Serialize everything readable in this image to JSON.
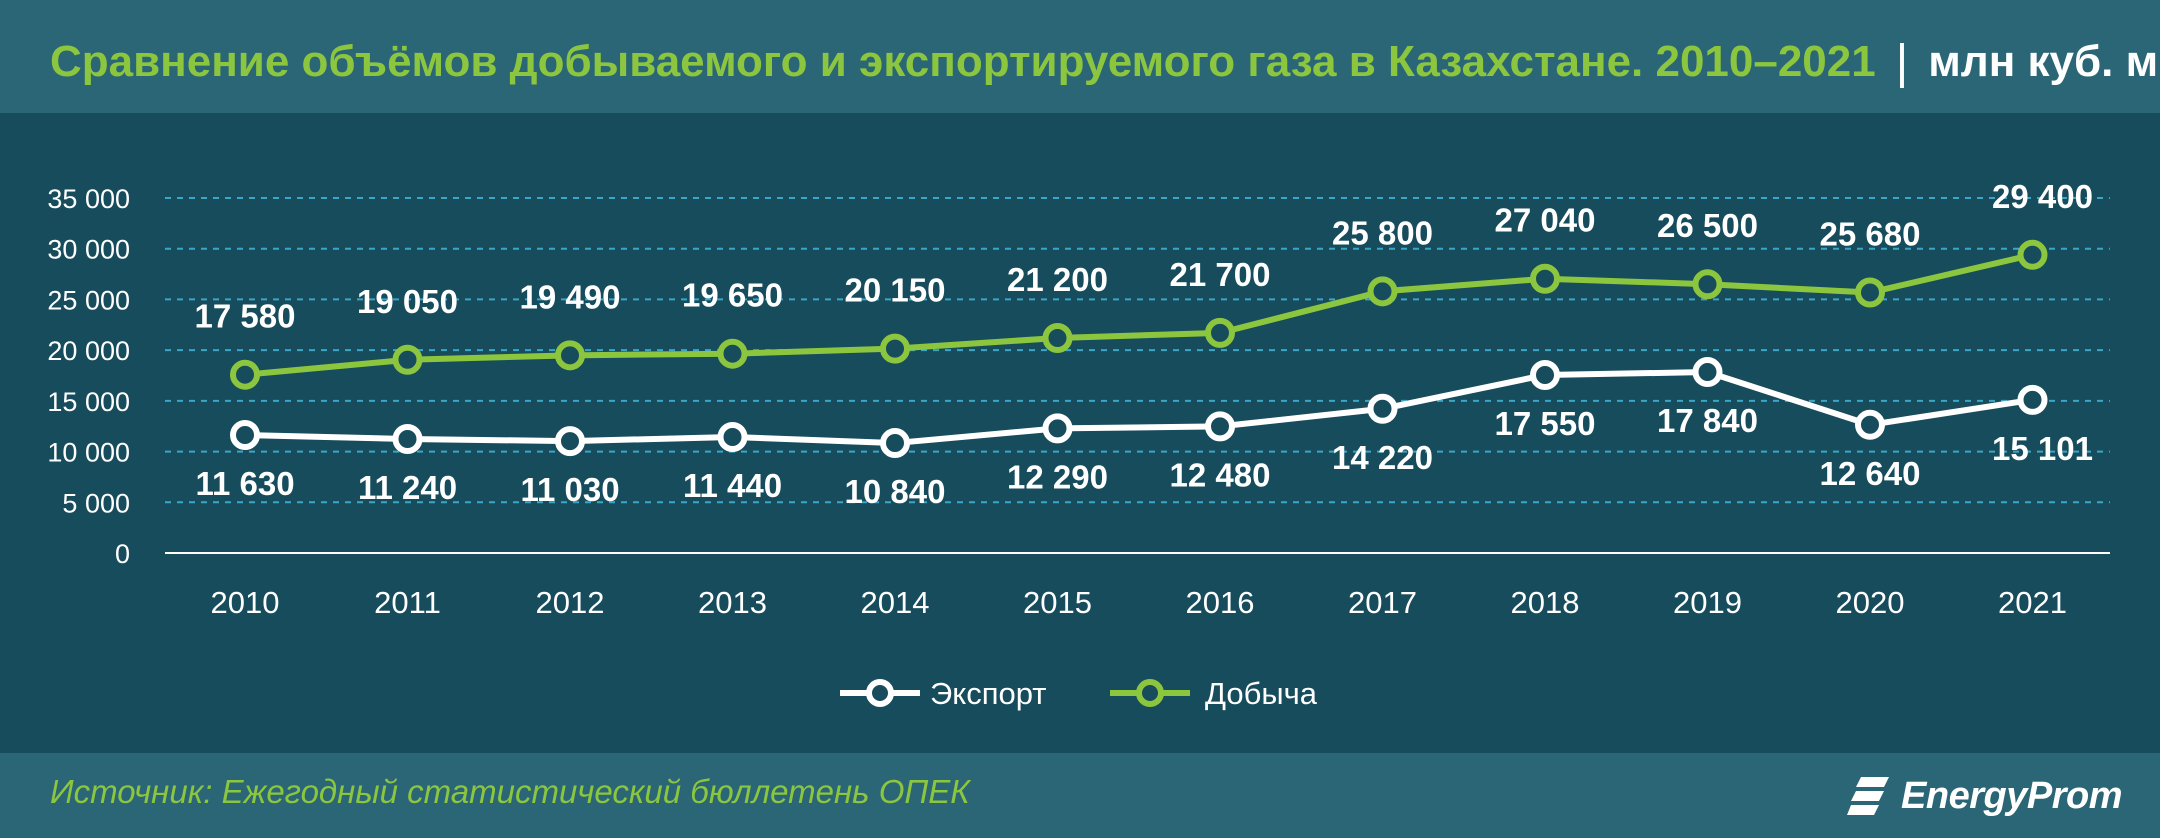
{
  "header": {
    "title": "Сравнение объёмов добываемого и экспортируемого газа в Казахстане. 2010–2021",
    "separator": "|",
    "units": "млн куб. м"
  },
  "footer": {
    "source": "Источник: Ежегодный статистический бюллетень ОПЕК",
    "logo_text": "EnergyProm"
  },
  "colors": {
    "export": "#ffffff",
    "production": "#8cc63f",
    "grid": "#3aa6c8",
    "background": "#174c5c"
  },
  "chart_data": {
    "type": "line",
    "categories": [
      "2010",
      "2011",
      "2012",
      "2013",
      "2014",
      "2015",
      "2016",
      "2017",
      "2018",
      "2019",
      "2020",
      "2021"
    ],
    "ylim": [
      0,
      35000
    ],
    "y_ticks": [
      0,
      5000,
      10000,
      15000,
      20000,
      25000,
      30000,
      35000
    ],
    "y_tick_labels": [
      "0",
      "5 000",
      "10 000",
      "15 000",
      "20 000",
      "25 000",
      "30 000",
      "35 000"
    ],
    "grid": true,
    "legend_position": "bottom",
    "series": [
      {
        "name": "Экспорт",
        "color": "#ffffff",
        "values": [
          11630,
          11240,
          11030,
          11440,
          10840,
          12290,
          12480,
          14220,
          17550,
          17840,
          12640,
          15101
        ],
        "labels": [
          "11 630",
          "11 240",
          "11 030",
          "11 440",
          "10 840",
          "12 290",
          "12 480",
          "14 220",
          "17 550",
          "17 840",
          "12 640",
          "15 101"
        ],
        "label_position": "below"
      },
      {
        "name": "Добыча",
        "color": "#8cc63f",
        "values": [
          17580,
          19050,
          19490,
          19650,
          20150,
          21200,
          21700,
          25800,
          27040,
          26500,
          25680,
          29400
        ],
        "labels": [
          "17 580",
          "19 050",
          "19 490",
          "19 650",
          "20 150",
          "21 200",
          "21 700",
          "25 800",
          "27 040",
          "26 500",
          "25 680",
          "29 400"
        ],
        "label_position": "above"
      }
    ]
  }
}
